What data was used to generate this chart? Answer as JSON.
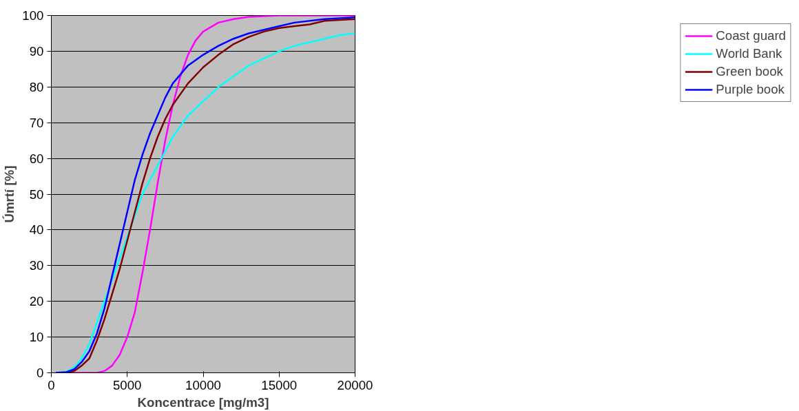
{
  "chart_data": {
    "type": "line",
    "xlabel": "Koncentrace [mg/m3]",
    "ylabel": "Úmrtí [%]",
    "xlim": [
      0,
      20000
    ],
    "xticks": [
      0,
      5000,
      10000,
      15000,
      20000
    ],
    "ylim": [
      0,
      100
    ],
    "yticks": [
      0,
      10,
      20,
      30,
      40,
      50,
      60,
      70,
      80,
      90,
      100
    ],
    "grid": "y",
    "legend": "right",
    "marker": "none",
    "line_style": "solid",
    "series": [
      {
        "name": "Coast guard",
        "color": "#ff00ff",
        "x": [
          300,
          3000,
          3500,
          4000,
          4500,
          5000,
          5500,
          6000,
          6500,
          7000,
          7500,
          8000,
          8500,
          9000,
          9500,
          10000,
          11000,
          12000,
          13000,
          15000,
          20000
        ],
        "values": [
          0,
          0,
          0.5,
          2,
          5,
          10,
          17,
          28,
          40,
          53,
          65,
          75,
          83,
          89,
          93,
          95.5,
          98,
          99,
          99.6,
          100,
          100
        ]
      },
      {
        "name": "World Bank",
        "color": "#00ffff",
        "x": [
          300,
          1000,
          1500,
          2000,
          2500,
          3000,
          3500,
          4000,
          4500,
          5000,
          5500,
          6000,
          6500,
          7000,
          7500,
          8000,
          9000,
          10000,
          11000,
          12000,
          13000,
          14000,
          15000,
          16000,
          17000,
          18000,
          19000,
          20000
        ],
        "values": [
          0,
          0.3,
          1.5,
          4,
          8,
          14,
          20,
          26,
          32,
          38,
          44,
          50,
          54,
          58,
          62,
          66,
          72,
          76,
          80,
          83,
          86,
          88,
          90,
          91.5,
          92.5,
          93.5,
          94.5,
          95
        ]
      },
      {
        "name": "Green book",
        "color": "#800000",
        "x": [
          300,
          1000,
          1500,
          2000,
          2500,
          3000,
          3500,
          4000,
          4500,
          5000,
          5500,
          6000,
          6500,
          7000,
          7500,
          8000,
          9000,
          10000,
          11000,
          12000,
          13000,
          14000,
          15000,
          16000,
          17000,
          18000,
          20000
        ],
        "values": [
          0,
          0,
          0.5,
          2,
          4,
          9,
          15,
          22,
          29,
          37,
          45,
          53,
          60,
          66,
          71,
          75,
          81,
          85.5,
          89,
          92,
          94,
          95.5,
          96.5,
          97,
          97.5,
          98.5,
          99
        ]
      },
      {
        "name": "Purple book",
        "color": "#0000ff",
        "x": [
          300,
          1000,
          1500,
          2000,
          2500,
          3000,
          3500,
          4000,
          4500,
          5000,
          5500,
          6000,
          6500,
          7000,
          7500,
          8000,
          9000,
          10000,
          11000,
          12000,
          13000,
          14000,
          15000,
          16000,
          18000,
          20000
        ],
        "values": [
          0,
          0.2,
          1,
          3,
          6,
          11,
          18,
          27,
          36,
          45,
          54,
          61,
          67,
          72,
          77,
          81,
          86,
          89,
          91.5,
          93.5,
          95,
          96,
          97,
          98,
          99,
          99.5
        ]
      }
    ]
  }
}
